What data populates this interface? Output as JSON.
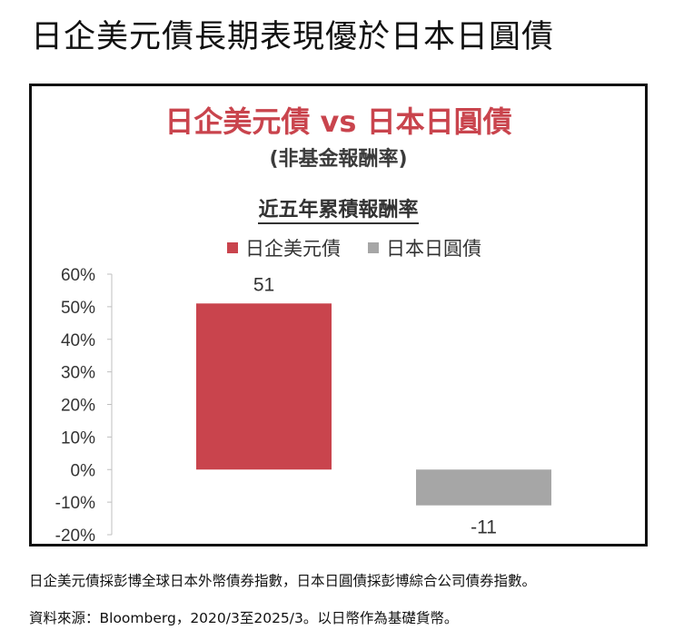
{
  "page_title": "日企美元債長期表現優於日本日圓債",
  "chart_data": {
    "type": "bar",
    "title": "日企美元債 vs 日本日圓債",
    "subtitle": "(非基金報酬率)",
    "heading": "近五年累積報酬率",
    "legend_position": "top",
    "grid": false,
    "ylim": [
      -20,
      60
    ],
    "y_ticks": [
      60,
      50,
      40,
      30,
      20,
      10,
      0,
      -10,
      -20
    ],
    "y_tick_labels": [
      "60%",
      "50%",
      "40%",
      "30%",
      "20%",
      "10%",
      "0%",
      "-10%",
      "-20%"
    ],
    "series": [
      {
        "name": "日企美元債",
        "value": 51,
        "label": "51",
        "color": "#c9444d"
      },
      {
        "name": "日本日圓債",
        "value": -11,
        "label": "-11",
        "color": "#a6a6a6"
      }
    ]
  },
  "footnotes": [
    "日企美元債採彭博全球日本外幣債券指數，日本日圓債採彭博綜合公司債券指數。",
    "資料來源：Bloomberg，2020/3至2025/3。以日幣作為基礎貨幣。"
  ]
}
